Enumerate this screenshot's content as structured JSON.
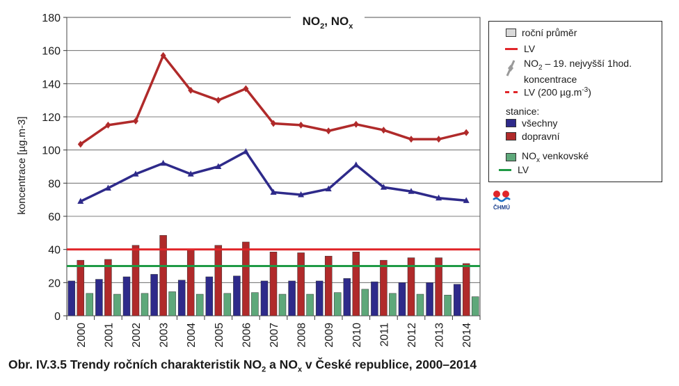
{
  "chart_data": {
    "type": "bar+line",
    "title_main": "NO",
    "title_sub1": "2",
    "title_sep": ", NO",
    "title_sub2": "x",
    "ylabel": "koncentrace [µg.m-3]",
    "ylim": [
      0,
      180
    ],
    "yticks": [
      0,
      20,
      40,
      60,
      80,
      100,
      120,
      140,
      160,
      180
    ],
    "categories": [
      "2000",
      "2001",
      "2002",
      "2003",
      "2004",
      "2005",
      "2006",
      "2007",
      "2008",
      "2009",
      "2010",
      "2011",
      "2012",
      "2013",
      "2014"
    ],
    "bar_series": [
      {
        "name": "všechny",
        "color": "#2e2a8a",
        "values": [
          21,
          22,
          23.5,
          25,
          21.5,
          23.5,
          24,
          21,
          21,
          21,
          22.5,
          20.5,
          20,
          20,
          19
        ]
      },
      {
        "name": "dopravní",
        "color": "#b02a2a",
        "values": [
          33.5,
          34,
          42.5,
          48.5,
          40,
          42.5,
          44.5,
          38.5,
          38,
          36,
          38.5,
          33.5,
          35,
          35,
          31.5
        ]
      },
      {
        "name": "NOx venkovské",
        "color": "#5ea87a",
        "values": [
          13.5,
          13,
          13.5,
          14.5,
          13,
          13.5,
          14,
          13,
          13,
          14,
          16,
          13.5,
          13,
          12.5,
          11.5
        ]
      }
    ],
    "line_series": [
      {
        "name": "dopravní – 19. nejvyšší 1hod. koncentrace",
        "color": "#b02a2a",
        "marker": "diamond",
        "values": [
          103.5,
          115,
          117.5,
          157,
          136,
          130,
          137,
          116,
          115,
          111.5,
          115.5,
          112,
          106.5,
          106.5,
          110.5
        ]
      },
      {
        "name": "všechny – 19. nejvyšší 1hod. koncentrace",
        "color": "#2e2a8a",
        "marker": "triangle",
        "values": [
          69,
          77,
          85.5,
          92,
          85.5,
          90,
          99,
          74.5,
          73,
          76.5,
          91,
          77.5,
          75,
          71,
          69.5
        ]
      }
    ],
    "limit_lines": [
      {
        "name": "LV",
        "value": 40,
        "color": "#e0262a"
      },
      {
        "name": "LV",
        "value": 30,
        "color": "#1f9a45"
      }
    ],
    "grid": true,
    "legend_position": "right"
  },
  "legend": {
    "items": [
      {
        "label": "roční průměr"
      },
      {
        "label": "LV"
      },
      {
        "label_pre": "NO",
        "label_sub": "2",
        "label_post": " – 19. nejvyšší 1hod.",
        "label_line2": "koncentrace"
      },
      {
        "label_pre": "LV (200 µg.m",
        "label_sup": "-3",
        "label_post": ")"
      },
      {
        "label": "stanice:"
      },
      {
        "label": "všechny"
      },
      {
        "label": "dopravní"
      },
      {
        "label_pre": "NO",
        "label_sub": "x",
        "label_post": " venkovské"
      },
      {
        "label": "LV"
      }
    ],
    "colors": {
      "annual": "#d9d9d9",
      "lv_red": "#e0262a",
      "line_grey": "#9a9a9a",
      "lv_green": "#1f9a45"
    }
  },
  "logo": {
    "text": "ČHMÚ"
  },
  "caption": {
    "part1": "Obr. IV.3.5  Trendy ročních charakteristik NO",
    "sub1": "2",
    "part2": " a NO",
    "sub2": "x",
    "part3": " v České republice, 2000–2014"
  }
}
